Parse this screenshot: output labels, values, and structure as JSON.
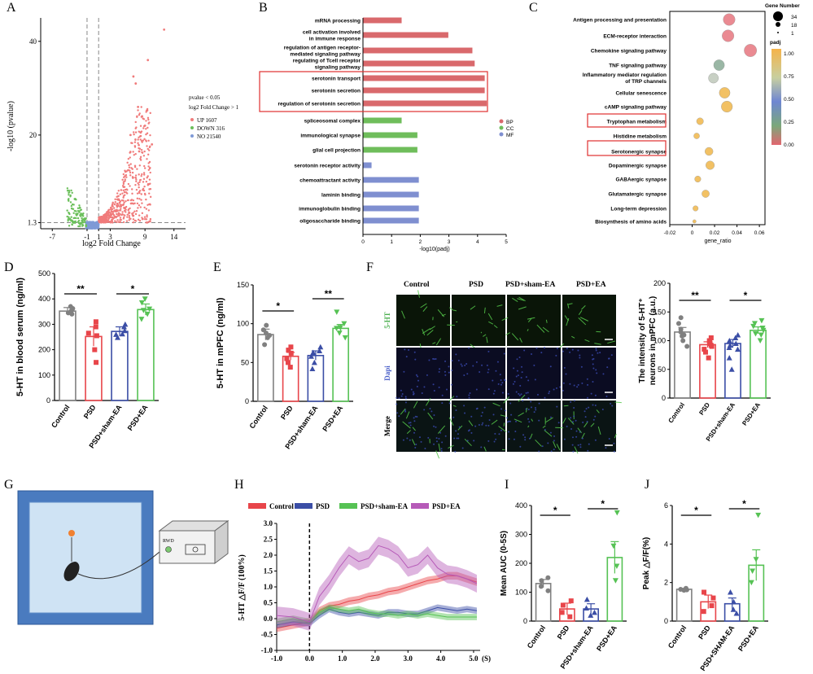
{
  "panel_letters": [
    "A",
    "B",
    "C",
    "D",
    "E",
    "F",
    "G",
    "H",
    "I",
    "J"
  ],
  "colors": {
    "up": "#f07b7b",
    "down": "#6abf5a",
    "no": "#7f9ad6",
    "bp": "#d9696c",
    "cc": "#6fbd5b",
    "mf": "#7f8fd0",
    "control": "#808080",
    "psd": "#e8454a",
    "sham": "#3b4ea6",
    "ea": "#56c254",
    "ea_h": "#b65ab8"
  },
  "chart_data": [
    {
      "id": "A",
      "type": "scatter",
      "xlabel": "log2 Fold Change",
      "ylabel": "-log10 (pvalue)",
      "xticks": [
        "-7",
        "-1",
        "1",
        "3",
        "9",
        "14"
      ],
      "yticks": [
        "1.3",
        "20",
        "40"
      ],
      "xlim": [
        -9,
        16
      ],
      "ylim": [
        0,
        45
      ],
      "legend_title": [
        "pvalue < 0.05",
        "log2 Fold Change > 1"
      ],
      "series": [
        {
          "name": "UP 1607"
        },
        {
          "name": "DOWN 316"
        },
        {
          "name": "NO 21540"
        }
      ],
      "up_highlights": [
        [
          12.3,
          42.5
        ],
        [
          9.5,
          36
        ],
        [
          7.0,
          32.5
        ],
        [
          7.4,
          31
        ],
        [
          7.8,
          26
        ],
        [
          8.5,
          24
        ],
        [
          9.0,
          22
        ],
        [
          6.5,
          20
        ],
        [
          10.2,
          18
        ],
        [
          8.0,
          16.5
        ]
      ]
    },
    {
      "id": "B",
      "type": "bar",
      "xlabel": "-log10(padj)",
      "xlim": [
        0,
        5
      ],
      "xticks": [
        "0",
        "1",
        "2",
        "3",
        "4",
        "5"
      ],
      "categories": [
        "mRNA processing",
        "cell activation involved in immune response",
        "regulation of antigen receptor-mediated signaling pathway",
        "regulating of Tcell receptor signaling pathway",
        "serotonin transport",
        "serotonin secretion",
        "regulation of serotonin secretion",
        "spliceosomal complex",
        "immunological synapse",
        "glial cell projection",
        "serotonin receptor activity",
        "chemoattractant activity",
        "laminin binding",
        "immunoglobulin binding",
        "oligosaccharide binding"
      ],
      "values": [
        1.35,
        2.98,
        3.82,
        3.9,
        4.25,
        4.25,
        4.32,
        1.35,
        1.9,
        1.9,
        0.3,
        1.95,
        1.95,
        1.95,
        1.95
      ],
      "groups": [
        "BP",
        "BP",
        "BP",
        "BP",
        "BP",
        "BP",
        "BP",
        "CC",
        "CC",
        "CC",
        "MF",
        "MF",
        "MF",
        "MF",
        "MF"
      ],
      "series": [
        {
          "name": "BP"
        },
        {
          "name": "CC"
        },
        {
          "name": "MF"
        }
      ]
    },
    {
      "id": "C",
      "type": "scatter",
      "xlabel": "gene_ratio",
      "xticks": [
        "-0.02",
        "0",
        "0.02",
        "0.04",
        "0.06"
      ],
      "xlim": [
        -0.02,
        0.065
      ],
      "categories": [
        "Antigen processing and presentation",
        "ECM-receptor interaction",
        "Chemokine signaling pathway",
        "TNF signaling pathway",
        "Inflammatory mediator regulation of TRP channels",
        "Cellular senescence",
        "cAMP signaling pathway",
        "Tryptophan metabolism",
        "Histidine metabolism",
        "Serotonergic synapse",
        "Dopaminergic synapse",
        "GABAergic synapse",
        "Glutamatergic synapse",
        "Long-term depression",
        "Biosynthesis of amino acids"
      ],
      "gene_ratio": [
        0.033,
        0.032,
        0.052,
        0.024,
        0.019,
        0.029,
        0.031,
        0.007,
        0.004,
        0.015,
        0.016,
        0.005,
        0.012,
        0.003,
        0.002
      ],
      "gene_number": [
        30,
        30,
        34,
        24,
        20,
        24,
        26,
        8,
        5,
        12,
        14,
        6,
        10,
        4,
        1
      ],
      "padj": [
        0.06,
        0.08,
        0.02,
        0.42,
        0.62,
        0.95,
        0.95,
        1.0,
        1.0,
        0.92,
        1.0,
        1.0,
        1.0,
        1.0,
        1.0
      ],
      "size_legend_title": "Gene Number",
      "size_legend": [
        "34",
        "18",
        "1"
      ],
      "color_legend_title": "padj",
      "color_ticks": [
        "1.00",
        "0.75",
        "0.50",
        "0.25",
        "0.00"
      ]
    },
    {
      "id": "D",
      "type": "bar",
      "ylabel": "5-HT in blood serum (ng/ml)",
      "ylim": [
        0,
        500
      ],
      "yticks": [
        "0",
        "100",
        "200",
        "300",
        "400",
        "500"
      ],
      "categories": [
        "Control",
        "PSD",
        "PSD+sham-EA",
        "PSD+EA"
      ],
      "values": [
        352,
        252,
        272,
        358
      ],
      "errors": [
        14,
        38,
        18,
        22
      ],
      "points": [
        [
          340,
          352,
          362,
          370,
          345
        ],
        [
          150,
          200,
          265,
          290,
          255,
          310
        ],
        [
          248,
          262,
          275,
          300,
          290,
          260
        ],
        [
          320,
          340,
          360,
          385,
          400,
          355
        ]
      ],
      "sig": [
        {
          "from": 0,
          "to": 1,
          "label": "**"
        },
        {
          "from": 2,
          "to": 3,
          "label": "*"
        }
      ]
    },
    {
      "id": "E",
      "type": "bar",
      "ylabel": "5-HT in mPFC (ng/ml)",
      "ylim": [
        0,
        150
      ],
      "yticks": [
        "0",
        "50",
        "100",
        "150"
      ],
      "categories": [
        "Control",
        "PSD",
        "PSD+sham-EA",
        "PSD+EA"
      ],
      "values": [
        86,
        58,
        59,
        94
      ],
      "errors": [
        7,
        5,
        6,
        5
      ],
      "points": [
        [
          73,
          82,
          92,
          98,
          85,
          88
        ],
        [
          44,
          50,
          55,
          62,
          66,
          70
        ],
        [
          42,
          50,
          58,
          65,
          70,
          63
        ],
        [
          82,
          88,
          95,
          100,
          115,
          94
        ]
      ],
      "sig": [
        {
          "from": 0,
          "to": 1,
          "label": "*"
        },
        {
          "from": 2,
          "to": 3,
          "label": "**"
        }
      ]
    },
    {
      "id": "F",
      "type": "bar",
      "ylabel": "The intensity of 5-HT+ neurons in mPFC (a.u.)",
      "ylim": [
        0,
        200
      ],
      "yticks": [
        "0",
        "50",
        "100",
        "150",
        "200"
      ],
      "categories": [
        "Control",
        "PSD",
        "PSD+sham-EA",
        "PSD+EA"
      ],
      "values": [
        115,
        93,
        95,
        118
      ],
      "errors": [
        8,
        5,
        7,
        6
      ],
      "points": [
        [
          90,
          100,
          110,
          120,
          130,
          140,
          115,
          108
        ],
        [
          70,
          80,
          90,
          95,
          100,
          105,
          85,
          92,
          98
        ],
        [
          50,
          70,
          85,
          95,
          100,
          110,
          105,
          92,
          88
        ],
        [
          100,
          110,
          118,
          125,
          130,
          135,
          112,
          122
        ]
      ],
      "sig": [
        {
          "from": 0,
          "to": 1,
          "label": "**"
        },
        {
          "from": 2,
          "to": 3,
          "label": "*"
        }
      ],
      "image_cols": [
        "Control",
        "PSD",
        "PSD+sham-EA",
        "PSD+EA"
      ],
      "image_rows": [
        "5-HT",
        "Dapi",
        "Merge"
      ]
    },
    {
      "id": "H",
      "type": "line",
      "ylabel": "5-HT △F/F (100%)",
      "xunit": "(S)",
      "xlim": [
        -1,
        5.2
      ],
      "ylim": [
        -1,
        3
      ],
      "xticks": [
        "-1.0",
        "0.0",
        "1.0",
        "2.0",
        "3.0",
        "4.0",
        "5.0"
      ],
      "yticks": [
        "-1.0",
        "-0.5",
        "0.0",
        "0.5",
        "1.0",
        "1.5",
        "2.0",
        "2.5",
        "3.0"
      ],
      "x": [
        -1,
        -0.5,
        0,
        0.3,
        0.6,
        0.9,
        1.2,
        1.5,
        1.8,
        2.1,
        2.4,
        2.7,
        3.0,
        3.3,
        3.6,
        3.9,
        4.2,
        4.5,
        4.8,
        5.1
      ],
      "series": [
        {
          "name": "Control",
          "values": [
            -0.3,
            -0.2,
            -0.1,
            0.25,
            0.4,
            0.45,
            0.55,
            0.6,
            0.7,
            0.75,
            0.85,
            0.9,
            1.0,
            1.1,
            1.2,
            1.25,
            1.35,
            1.35,
            1.25,
            1.15
          ]
        },
        {
          "name": "PSD",
          "values": [
            -0.2,
            -0.1,
            -0.15,
            0.1,
            0.3,
            0.2,
            0.15,
            0.2,
            0.15,
            0.1,
            0.2,
            0.2,
            0.15,
            0.15,
            0.25,
            0.35,
            0.3,
            0.25,
            0.3,
            0.25
          ]
        },
        {
          "name": "PSD+sham-EA",
          "values": [
            -0.1,
            0.0,
            -0.1,
            0.2,
            0.35,
            0.3,
            0.25,
            0.3,
            0.2,
            0.15,
            0.15,
            0.1,
            0.15,
            0.1,
            0.15,
            0.1,
            0.05,
            0.05,
            0.05,
            0.05
          ]
        },
        {
          "name": "PSD+EA",
          "values": [
            0.1,
            0.05,
            -0.1,
            0.7,
            1.1,
            1.6,
            2.0,
            1.8,
            1.9,
            2.3,
            2.2,
            2.0,
            1.6,
            1.7,
            2.0,
            1.6,
            1.4,
            1.35,
            1.25,
            1.1
          ]
        }
      ]
    },
    {
      "id": "I",
      "type": "bar",
      "ylabel": "Mean AUC (0-5S)",
      "ylim": [
        0,
        400
      ],
      "yticks": [
        "0",
        "100",
        "200",
        "300",
        "400"
      ],
      "categories": [
        "Control",
        "PSD",
        "PSD+sham-EA",
        "PSD+EA"
      ],
      "values": [
        130,
        42,
        42,
        220
      ],
      "errors": [
        14,
        20,
        18,
        55
      ],
      "points": [
        [
          105,
          120,
          140,
          150
        ],
        [
          15,
          30,
          55,
          70
        ],
        [
          20,
          30,
          45,
          75
        ],
        [
          140,
          190,
          260,
          375
        ]
      ],
      "sig": [
        {
          "from": 0,
          "to": 1,
          "label": "*"
        },
        {
          "from": 2,
          "to": 3,
          "label": "*"
        }
      ]
    },
    {
      "id": "J",
      "type": "bar",
      "ylabel": "Peak △F/F(%)",
      "ylim": [
        0,
        6
      ],
      "yticks": [
        "0",
        "2",
        "4",
        "6"
      ],
      "categories": [
        "Control",
        "PSD",
        "PSD+SHAM-EA",
        "PSD+EA"
      ],
      "values": [
        1.65,
        1.0,
        0.9,
        2.9
      ],
      "errors": [
        0.05,
        0.35,
        0.3,
        0.8
      ],
      "points": [
        [
          1.6,
          1.65,
          1.7,
          1.62
        ],
        [
          0.5,
          0.8,
          1.2,
          1.5
        ],
        [
          0.4,
          0.6,
          1.0,
          1.5
        ],
        [
          2.0,
          2.6,
          3.2,
          5.5
        ]
      ],
      "sig": [
        {
          "from": 0,
          "to": 1,
          "label": "*"
        },
        {
          "from": 2,
          "to": 3,
          "label": "*"
        }
      ]
    }
  ],
  "schematic": {
    "device_label": "RWD"
  }
}
